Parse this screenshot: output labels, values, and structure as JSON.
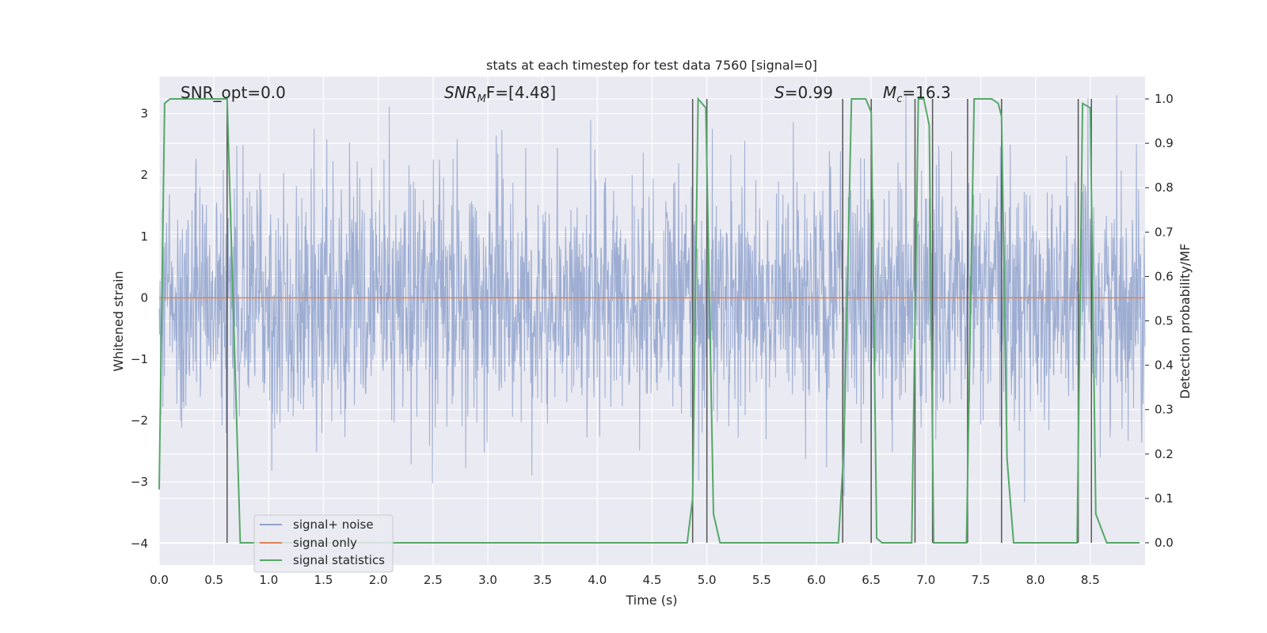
{
  "chart_data": {
    "type": "line",
    "title": "stats at each timestep for test data 7560 [signal=0]",
    "xlabel": "Time (s)",
    "ylabel": "Whitened strain",
    "ylabel_right": "Detection probability/MF",
    "xlim": [
      0.0,
      9.0
    ],
    "ylim": [
      -4.35,
      3.6
    ],
    "ylim_right": [
      -0.05,
      1.05
    ],
    "xticks": [
      "0.0",
      "0.5",
      "1.0",
      "1.5",
      "2.0",
      "2.5",
      "3.0",
      "3.5",
      "4.0",
      "4.5",
      "5.0",
      "5.5",
      "6.0",
      "6.5",
      "7.0",
      "7.5",
      "8.0",
      "8.5"
    ],
    "yticks": [
      "3",
      "2",
      "1",
      "0",
      "−1",
      "−2",
      "−3",
      "−4"
    ],
    "yticks_right": [
      "1.0",
      "0.9",
      "0.8",
      "0.7",
      "0.6",
      "0.5",
      "0.4",
      "0.3",
      "0.2",
      "0.1",
      "0.0"
    ],
    "grid": true,
    "legend_position": "lower-left",
    "annotations": {
      "snr_opt": "SNR_opt=0.0",
      "snr_mf_main": "SNR",
      "snr_mf_sub": "M",
      "snr_mf_rest": "F=[4.48]",
      "s_italic": "S",
      "s_value": "=0.99",
      "mc_main": "M",
      "mc_sub": "c",
      "mc_value": "=16.3"
    },
    "series": [
      {
        "name": "signal+ noise",
        "color": "#8fa2cd",
        "axis": "left",
        "description": "whitened noisy strain, roughly Gaussian with amplitude about +/-1, peaks to about +/-3.3",
        "envelope_std": 1.0
      },
      {
        "name": "signal only",
        "color": "#dd8452",
        "axis": "left",
        "x": [
          0.0,
          9.0
        ],
        "y": [
          0.0,
          0.0
        ]
      },
      {
        "name": "signal statistics",
        "color": "#55a868",
        "axis": "right",
        "x": [
          0.0,
          0.05,
          0.1,
          0.3,
          0.5,
          0.6,
          0.62,
          0.74,
          0.8,
          4.0,
          4.82,
          4.87,
          4.92,
          4.99,
          5.06,
          5.12,
          5.5,
          6.2,
          6.25,
          6.32,
          6.45,
          6.5,
          6.55,
          6.6,
          6.7,
          6.8,
          6.87,
          6.93,
          6.98,
          7.03,
          7.07,
          7.13,
          7.3,
          7.37,
          7.44,
          7.6,
          7.66,
          7.69,
          7.74,
          7.8,
          8.35,
          8.38,
          8.43,
          8.5,
          8.55,
          8.65,
          8.8,
          8.9,
          8.95
        ],
        "y": [
          0.12,
          0.99,
          1.0,
          1.0,
          1.0,
          1.0,
          1.0,
          0.0,
          0.0,
          0.0,
          0.0,
          0.1,
          1.0,
          0.98,
          0.065,
          0.0,
          0.0,
          0.0,
          0.21,
          1.0,
          1.0,
          0.97,
          0.01,
          0.0,
          0.0,
          0.0,
          0.0,
          1.0,
          1.0,
          0.94,
          0.0,
          0.0,
          0.0,
          0.0,
          1.0,
          1.0,
          0.99,
          0.96,
          0.19,
          0.0,
          0.0,
          0.0,
          0.99,
          0.98,
          0.065,
          0.0,
          0.0,
          0.0,
          0.0
        ]
      }
    ],
    "markers": {
      "color": "#555555",
      "x": [
        0.62,
        4.87,
        5.0,
        6.24,
        6.5,
        6.9,
        7.06,
        7.38,
        7.69,
        8.39,
        8.51
      ],
      "y_range_right": [
        0.0,
        1.0
      ]
    }
  }
}
